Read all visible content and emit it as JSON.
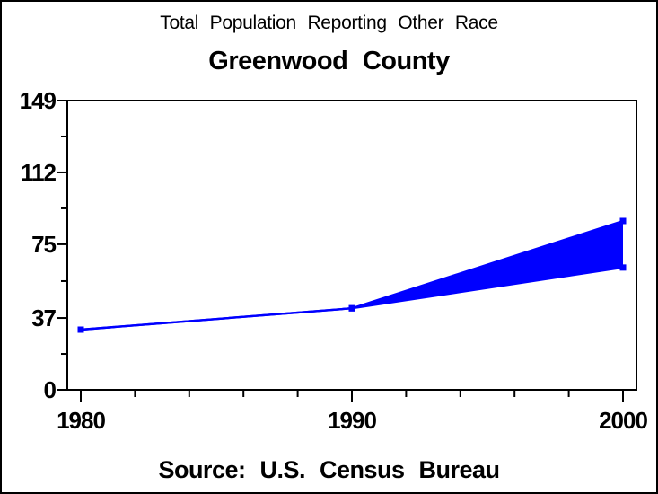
{
  "window": {
    "background": "#ffffff",
    "border_color": "#000000"
  },
  "chart_data": {
    "type": "area",
    "title": "Total Population Reporting Other Race",
    "subtitle": "Greenwood County",
    "footnote": "Source: U.S. Census Bureau",
    "x": [
      1980,
      1990,
      2000
    ],
    "xlim": [
      1980,
      2000
    ],
    "ylim": [
      0,
      149
    ],
    "yticks": [
      0,
      37,
      75,
      112,
      149
    ],
    "y_minor_ticks": [
      18.5,
      56,
      93.5,
      130.5
    ],
    "xticks": [
      1980,
      1990,
      2000
    ],
    "x_minor_ticks": [
      1982,
      1984,
      1986,
      1988,
      1992,
      1994,
      1996,
      1998
    ],
    "series": [
      {
        "name": "upper-bound",
        "values": [
          31,
          42,
          87
        ]
      },
      {
        "name": "lower-bound",
        "values": [
          31,
          42,
          63
        ]
      }
    ],
    "band_color": "#0000ff",
    "axis_color": "#000000",
    "grid": false,
    "legend": "none"
  }
}
